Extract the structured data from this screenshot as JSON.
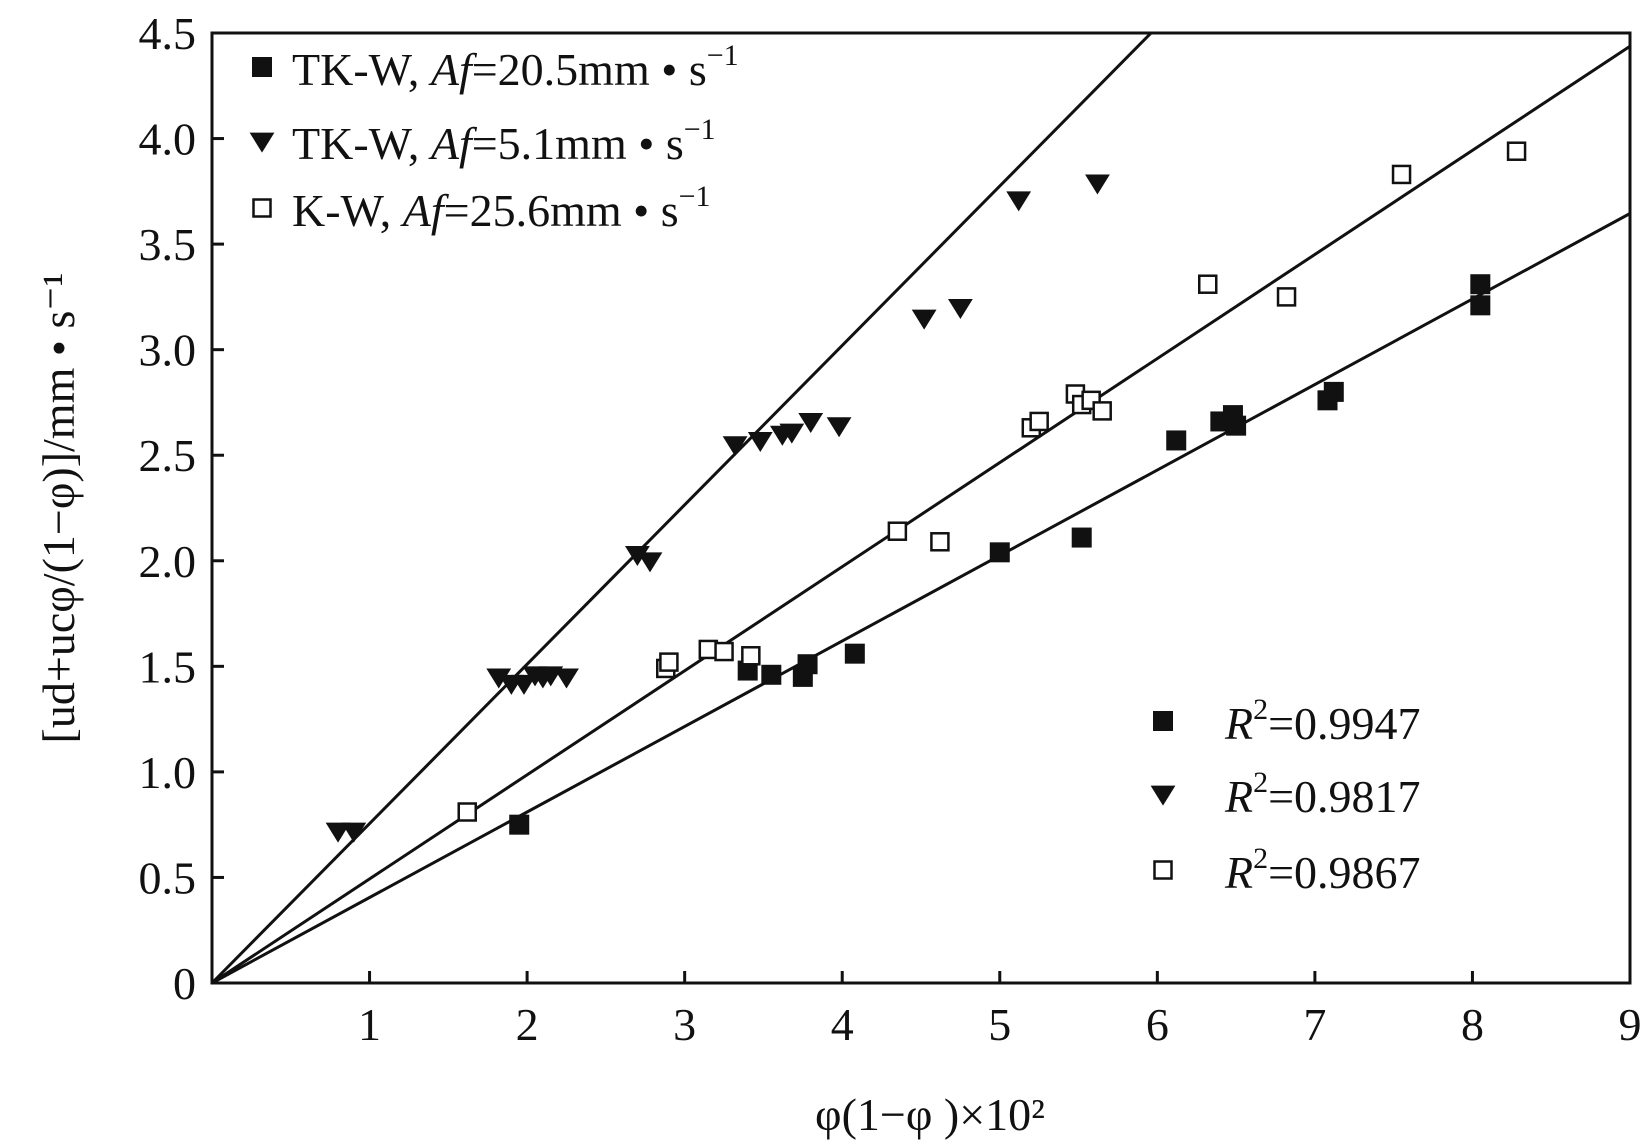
{
  "chart_data": {
    "type": "scatter",
    "xlabel": "φ(1−φ )×10²",
    "ylabel": "[ud+ucφ/(1−φ)]/mm • s⁻¹",
    "xlim": [
      0,
      9
    ],
    "ylim": [
      0,
      4.5
    ],
    "x_ticks": [
      1,
      2,
      3,
      4,
      5,
      6,
      7,
      8,
      9
    ],
    "x_tick_labels": [
      "1",
      "2",
      "3",
      "4",
      "5",
      "6",
      "7",
      "8",
      "9"
    ],
    "y_ticks": [
      0,
      0.5,
      1.0,
      1.5,
      2.0,
      2.5,
      3.0,
      3.5,
      4.0,
      4.5
    ],
    "y_tick_labels": [
      "0",
      "0.5",
      "1.0",
      "1.5",
      "2.0",
      "2.5",
      "3.0",
      "3.5",
      "4.0",
      "4.5"
    ],
    "grid": false,
    "legend_position": "top-left",
    "series": [
      {
        "name": "TK-W, Af=20.5mm • s⁻¹",
        "legend_label": {
          "prefix": "TK-W, ",
          "italic": "Af",
          "suffix": "=20.5mm • s",
          "sup": "−1"
        },
        "marker": "filled-square",
        "color": "#111111",
        "fit_slope": 0.405,
        "r2": "R²=0.9947",
        "r2_label": {
          "italic": "R",
          "sup": "2",
          "text": "=0.9947"
        },
        "points": [
          [
            1.95,
            0.75
          ],
          [
            3.4,
            1.48
          ],
          [
            3.55,
            1.46
          ],
          [
            3.75,
            1.45
          ],
          [
            3.78,
            1.51
          ],
          [
            4.08,
            1.56
          ],
          [
            5.0,
            2.04
          ],
          [
            5.52,
            2.11
          ],
          [
            6.12,
            2.57
          ],
          [
            6.4,
            2.66
          ],
          [
            6.48,
            2.69
          ],
          [
            6.5,
            2.64
          ],
          [
            7.08,
            2.76
          ],
          [
            7.12,
            2.8
          ],
          [
            8.05,
            3.31
          ],
          [
            8.05,
            3.21
          ]
        ]
      },
      {
        "name": "TK-W, Af=5.1mm • s⁻¹",
        "legend_label": {
          "prefix": "TK-W, ",
          "italic": "Af",
          "suffix": "=5.1mm • s",
          "sup": "−1"
        },
        "marker": "filled-triangle-down",
        "color": "#111111",
        "fit_slope": 0.755,
        "r2": "R²=0.9817",
        "r2_label": {
          "italic": "R",
          "sup": "2",
          "text": "=0.9817"
        },
        "points": [
          [
            0.8,
            0.72
          ],
          [
            0.9,
            0.72
          ],
          [
            1.82,
            1.45
          ],
          [
            1.9,
            1.42
          ],
          [
            1.98,
            1.42
          ],
          [
            2.05,
            1.46
          ],
          [
            2.1,
            1.45
          ],
          [
            2.15,
            1.46
          ],
          [
            2.25,
            1.45
          ],
          [
            2.7,
            2.03
          ],
          [
            2.78,
            2.0
          ],
          [
            3.32,
            2.55
          ],
          [
            3.48,
            2.57
          ],
          [
            3.62,
            2.6
          ],
          [
            3.68,
            2.61
          ],
          [
            3.8,
            2.66
          ],
          [
            3.98,
            2.64
          ],
          [
            4.52,
            3.15
          ],
          [
            4.75,
            3.2
          ],
          [
            5.12,
            3.71
          ],
          [
            5.62,
            3.79
          ]
        ]
      },
      {
        "name": "K-W, Af=25.6mm • s⁻¹",
        "legend_label": {
          "prefix": "K-W, ",
          "italic": "Af",
          "suffix": "=25.6mm • s",
          "sup": "−1"
        },
        "marker": "open-square",
        "color": "#111111",
        "fit_slope": 0.493,
        "r2": "R²=0.9867",
        "r2_label": {
          "italic": "R",
          "sup": "2",
          "text": "=0.9867"
        },
        "points": [
          [
            1.62,
            0.81
          ],
          [
            2.88,
            1.49
          ],
          [
            2.9,
            1.52
          ],
          [
            3.15,
            1.58
          ],
          [
            3.25,
            1.57
          ],
          [
            3.42,
            1.55
          ],
          [
            4.35,
            2.14
          ],
          [
            4.62,
            2.09
          ],
          [
            5.2,
            2.63
          ],
          [
            5.25,
            2.66
          ],
          [
            5.48,
            2.79
          ],
          [
            5.52,
            2.74
          ],
          [
            5.58,
            2.76
          ],
          [
            5.65,
            2.71
          ],
          [
            6.32,
            3.31
          ],
          [
            6.82,
            3.25
          ],
          [
            7.55,
            3.83
          ],
          [
            8.28,
            3.94
          ]
        ]
      }
    ]
  }
}
